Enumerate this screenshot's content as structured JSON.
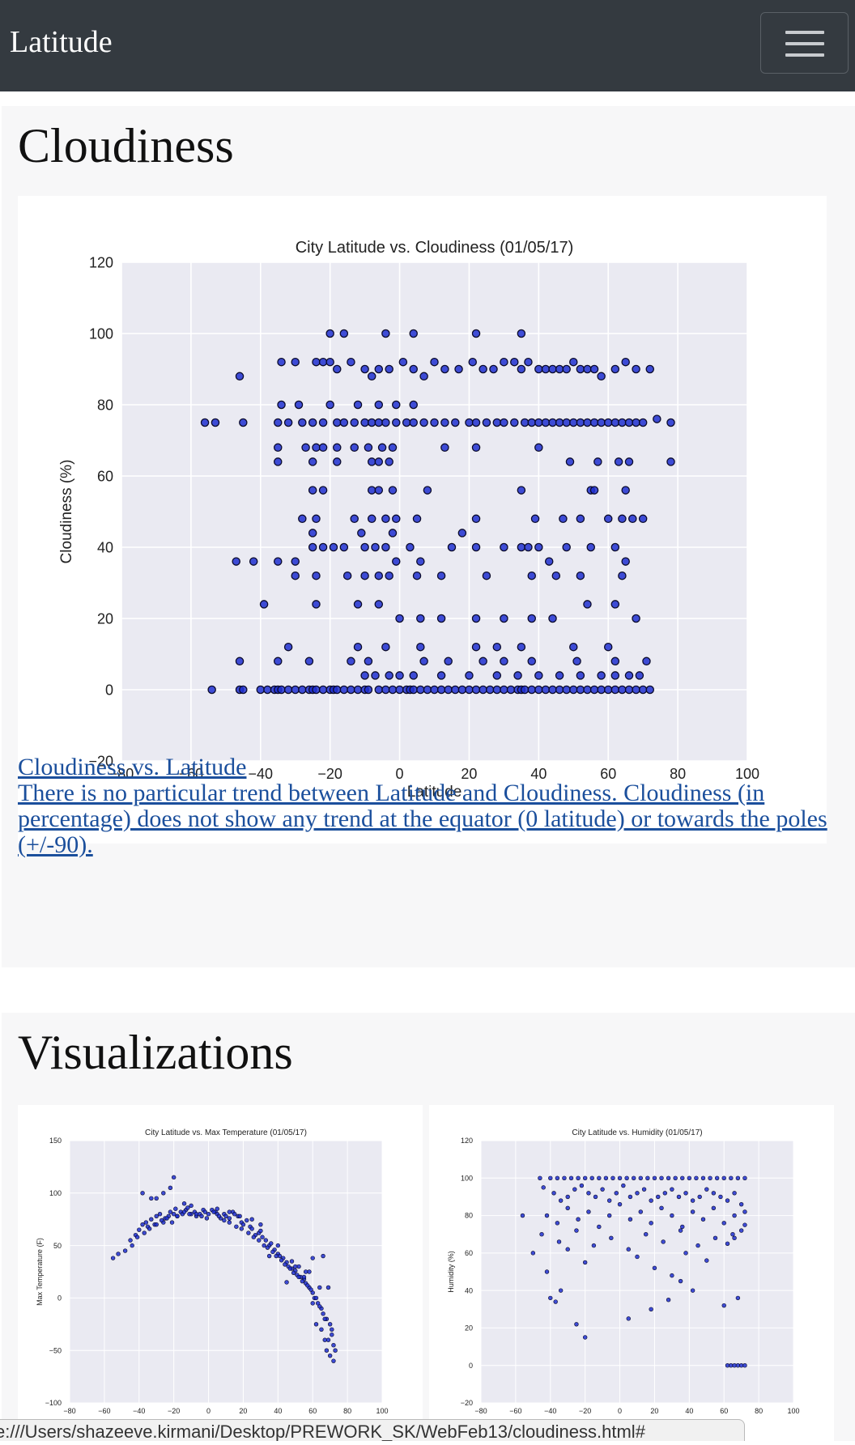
{
  "navbar": {
    "brand": "Latitude",
    "menu_icon": "hamburger-icon"
  },
  "cloudiness_section": {
    "title": "Cloudiness",
    "link_title": "Cloudiness vs. Latitude",
    "link_text": "There is no particular trend between Latitude and Cloudiness. Cloudiness (in percentage) does not show any trend at the equator (0 latitude) or towards the poles (+/-90)."
  },
  "visualizations_section": {
    "title": "Visualizations"
  },
  "status_bar": {
    "url": "e:///Users/shazeeve.kirmani/Desktop/PREWORK_SK/WebFeb13/cloudiness.html#"
  },
  "colors": {
    "navbar": "#343a40",
    "point_fill": "#1f2fd0",
    "plot_bg": "#eaeaf2",
    "link": "#1b4f9c"
  },
  "chart_data": [
    {
      "type": "scatter",
      "title": "City Latitude vs. Cloudiness (01/05/17)",
      "xlabel": "Latitude",
      "ylabel": "Cloudiness (%)",
      "xlim": [
        -80,
        100
      ],
      "ylim": [
        -20,
        120
      ],
      "xticks": [
        -80,
        -60,
        -40,
        -20,
        0,
        20,
        40,
        60,
        80,
        100
      ],
      "yticks": [
        -20,
        0,
        20,
        40,
        60,
        80,
        100,
        120
      ],
      "grid": true,
      "x": [
        -54,
        -46,
        -45,
        -40,
        -38,
        -36,
        -35,
        -34,
        -32,
        -30,
        -28,
        -26,
        -25,
        -24,
        -22,
        -20,
        -19,
        -18,
        -16,
        -14,
        -12,
        -10,
        -9,
        -6,
        -4,
        -2,
        0,
        2,
        3,
        4,
        6,
        8,
        10,
        12,
        14,
        16,
        18,
        20,
        22,
        24,
        26,
        28,
        30,
        32,
        34,
        35,
        36,
        38,
        40,
        42,
        44,
        46,
        48,
        50,
        52,
        54,
        56,
        58,
        60,
        62,
        64,
        66,
        68,
        70,
        72,
        -56,
        -53,
        -45,
        -35,
        -32,
        -28,
        -25,
        -22,
        -18,
        -16,
        -13,
        -10,
        -8,
        -6,
        -4,
        -1,
        2,
        4,
        7,
        10,
        13,
        16,
        20,
        22,
        25,
        28,
        30,
        33,
        36,
        38,
        40,
        42,
        44,
        46,
        48,
        50,
        52,
        54,
        56,
        58,
        60,
        62,
        64,
        66,
        68,
        70,
        74,
        78,
        -46,
        -34,
        -30,
        -24,
        -22,
        -20,
        -18,
        -14,
        -10,
        -8,
        -6,
        -3,
        1,
        4,
        7,
        10,
        13,
        17,
        21,
        24,
        27,
        30,
        33,
        35,
        37,
        40,
        42,
        44,
        46,
        48,
        50,
        52,
        54,
        56,
        58,
        62,
        65,
        68,
        72,
        -20,
        -16,
        -4,
        4,
        22,
        35,
        -34,
        -29,
        -20,
        -12,
        -6,
        -1,
        4,
        -35,
        -27,
        -24,
        -22,
        -18,
        -13,
        -9,
        -5,
        -2,
        -35,
        -25,
        -18,
        -8,
        -6,
        -3,
        13,
        22,
        40,
        49,
        57,
        63,
        66,
        78,
        -25,
        -22,
        -8,
        -6,
        -2,
        8,
        35,
        55,
        56,
        65,
        -28,
        -24,
        -13,
        -8,
        -4,
        -1,
        5,
        22,
        39,
        47,
        52,
        60,
        64,
        67,
        70,
        -47,
        -42,
        -35,
        -30,
        -25,
        -22,
        -19,
        -16,
        -10,
        -7,
        -4,
        -1,
        3,
        6,
        15,
        22,
        30,
        35,
        37,
        40,
        43,
        48,
        55,
        62,
        65,
        -30,
        -24,
        -15,
        -10,
        -6,
        -3,
        5,
        12,
        25,
        38,
        45,
        52,
        64,
        -39,
        -24,
        -12,
        -6,
        0,
        6,
        12,
        22,
        30,
        38,
        44,
        54,
        62,
        68,
        -32,
        -12,
        -4,
        6,
        22,
        28,
        35,
        50,
        60,
        -46,
        -35,
        -26,
        -14,
        -9,
        7,
        14,
        24,
        30,
        38,
        51,
        62,
        71,
        -25,
        -11,
        -2,
        18,
        -10,
        -7,
        -3,
        0,
        4,
        12,
        20,
        28,
        34,
        40,
        46,
        52,
        58,
        62,
        66,
        69
      ],
      "y": [
        0,
        0,
        0,
        0,
        0,
        0,
        0,
        0,
        0,
        0,
        0,
        0,
        0,
        0,
        0,
        0,
        0,
        0,
        0,
        0,
        0,
        0,
        0,
        0,
        0,
        0,
        0,
        0,
        0,
        0,
        0,
        0,
        0,
        0,
        0,
        0,
        0,
        0,
        0,
        0,
        0,
        0,
        0,
        0,
        0,
        0,
        0,
        0,
        0,
        0,
        0,
        0,
        0,
        0,
        0,
        0,
        0,
        0,
        0,
        0,
        0,
        0,
        0,
        0,
        0,
        75,
        75,
        75,
        75,
        75,
        75,
        75,
        75,
        75,
        75,
        75,
        75,
        75,
        75,
        75,
        75,
        75,
        75,
        75,
        75,
        75,
        75,
        75,
        75,
        75,
        75,
        75,
        75,
        75,
        75,
        75,
        75,
        75,
        75,
        75,
        75,
        75,
        75,
        75,
        75,
        75,
        75,
        75,
        75,
        75,
        75,
        76,
        75,
        88,
        92,
        92,
        92,
        92,
        92,
        90,
        92,
        90,
        88,
        90,
        90,
        92,
        90,
        88,
        92,
        90,
        90,
        92,
        90,
        90,
        92,
        92,
        90,
        92,
        90,
        90,
        90,
        90,
        90,
        92,
        90,
        90,
        90,
        88,
        90,
        92,
        90,
        90,
        100,
        100,
        100,
        100,
        100,
        100,
        80,
        80,
        80,
        80,
        80,
        80,
        80,
        68,
        68,
        68,
        68,
        68,
        68,
        68,
        68,
        68,
        64,
        64,
        64,
        64,
        64,
        64,
        68,
        68,
        68,
        64,
        64,
        64,
        64,
        64,
        56,
        56,
        56,
        56,
        56,
        56,
        56,
        56,
        56,
        56,
        48,
        48,
        48,
        48,
        48,
        48,
        48,
        48,
        48,
        48,
        48,
        48,
        48,
        48,
        48,
        36,
        36,
        36,
        36,
        40,
        40,
        40,
        40,
        40,
        40,
        40,
        36,
        40,
        36,
        40,
        40,
        40,
        40,
        40,
        40,
        36,
        40,
        40,
        40,
        36,
        32,
        32,
        32,
        32,
        32,
        32,
        32,
        32,
        32,
        32,
        32,
        32,
        32,
        24,
        24,
        24,
        24,
        20,
        20,
        20,
        20,
        20,
        20,
        20,
        24,
        24,
        20,
        12,
        12,
        12,
        12,
        12,
        12,
        12,
        12,
        12,
        8,
        8,
        8,
        8,
        8,
        8,
        8,
        8,
        8,
        8,
        8,
        8,
        8,
        44,
        44,
        44,
        44,
        4,
        4,
        4,
        4,
        4,
        4,
        4,
        4,
        4,
        4,
        4,
        4,
        4,
        4,
        4,
        4
      ]
    },
    {
      "type": "scatter",
      "title": "City Latitude vs. Max Temperature (01/05/17)",
      "xlabel": "",
      "ylabel": "Max Temperature (F)",
      "xlim": [
        -80,
        100
      ],
      "ylim": [
        -100,
        150
      ],
      "xticks": [
        -80,
        -60,
        -40,
        -20,
        0,
        20,
        40,
        60,
        80,
        100
      ],
      "yticks": [
        -100,
        -50,
        0,
        50,
        100,
        150
      ],
      "grid": true,
      "x": [
        -55,
        -52,
        -48,
        -45,
        -42,
        -40,
        -38,
        -36,
        -35,
        -33,
        -31,
        -30,
        -28,
        -26,
        -25,
        -23,
        -22,
        -20,
        -19,
        -18,
        -16,
        -15,
        -13,
        -12,
        -10,
        -8,
        -7,
        -5,
        -3,
        -2,
        0,
        2,
        4,
        5,
        7,
        9,
        10,
        12,
        14,
        15,
        17,
        19,
        20,
        22,
        24,
        25,
        27,
        29,
        30,
        31,
        33,
        35,
        36,
        38,
        40,
        41,
        43,
        45,
        46,
        48,
        50,
        51,
        53,
        55,
        56,
        58,
        60,
        61,
        63,
        65,
        66,
        68,
        70,
        71,
        72,
        -44,
        -41,
        -37,
        -34,
        -30,
        -27,
        -24,
        -21,
        -18,
        -14,
        -11,
        -7,
        -4,
        -1,
        3,
        6,
        9,
        12,
        16,
        19,
        23,
        26,
        29,
        32,
        34,
        37,
        39,
        42,
        44,
        47,
        49,
        52,
        54,
        57,
        59,
        62,
        64,
        67,
        69,
        -22,
        -30,
        -14,
        -10,
        35,
        45,
        55,
        60,
        62,
        65,
        67,
        68,
        70,
        72,
        48,
        52,
        58,
        64,
        -20,
        -26,
        -33,
        -38,
        5,
        12,
        18,
        25,
        30,
        40,
        50,
        56,
        60,
        66,
        69,
        71,
        73
      ],
      "y": [
        38,
        42,
        45,
        55,
        60,
        65,
        70,
        72,
        68,
        75,
        70,
        78,
        80,
        72,
        76,
        78,
        82,
        80,
        85,
        78,
        82,
        80,
        84,
        86,
        80,
        82,
        78,
        80,
        84,
        82,
        80,
        84,
        82,
        80,
        76,
        80,
        78,
        76,
        82,
        80,
        78,
        72,
        70,
        74,
        68,
        66,
        60,
        62,
        64,
        58,
        55,
        50,
        52,
        46,
        42,
        40,
        38,
        34,
        30,
        28,
        26,
        22,
        20,
        18,
        14,
        10,
        5,
        0,
        -5,
        -10,
        -15,
        -20,
        -25,
        -35,
        -45,
        50,
        58,
        62,
        66,
        70,
        74,
        76,
        72,
        78,
        82,
        80,
        80,
        78,
        76,
        82,
        78,
        74,
        72,
        68,
        66,
        62,
        58,
        55,
        50,
        48,
        44,
        40,
        36,
        32,
        28,
        24,
        20,
        16,
        12,
        8,
        0,
        -8,
        -20,
        -40,
        105,
        95,
        90,
        88,
        40,
        15,
        20,
        -5,
        -25,
        -30,
        -40,
        -50,
        -55,
        -60,
        35,
        30,
        25,
        10,
        115,
        100,
        95,
        100,
        85,
        82,
        78,
        75,
        70,
        50,
        30,
        25,
        38,
        40,
        10,
        -30,
        -50
      ]
    },
    {
      "type": "scatter",
      "title": "City Latitude vs. Humidity (01/05/17)",
      "xlabel": "",
      "ylabel": "Humidity (%)",
      "xlim": [
        -80,
        100
      ],
      "ylim": [
        -20,
        120
      ],
      "xticks": [
        -80,
        -60,
        -40,
        -20,
        0,
        20,
        40,
        60,
        80,
        100
      ],
      "yticks": [
        -20,
        0,
        20,
        40,
        60,
        80,
        100,
        120
      ],
      "grid": true,
      "x": [
        -46,
        -40,
        -36,
        -32,
        -28,
        -24,
        -20,
        -16,
        -12,
        -8,
        -4,
        0,
        4,
        8,
        12,
        16,
        20,
        24,
        28,
        32,
        36,
        40,
        44,
        48,
        52,
        56,
        60,
        64,
        68,
        72,
        -44,
        -38,
        -34,
        -30,
        -26,
        -22,
        -18,
        -14,
        -10,
        -6,
        -2,
        2,
        6,
        10,
        14,
        18,
        22,
        26,
        30,
        34,
        38,
        42,
        46,
        50,
        54,
        58,
        62,
        66,
        70,
        -42,
        -36,
        -30,
        -24,
        -18,
        -12,
        -6,
        0,
        6,
        12,
        18,
        24,
        30,
        36,
        42,
        48,
        54,
        60,
        66,
        72,
        -45,
        -35,
        -25,
        -15,
        -5,
        5,
        15,
        25,
        35,
        45,
        55,
        65,
        -56,
        -50,
        -42,
        -30,
        -20,
        10,
        20,
        30,
        38,
        50,
        62,
        66,
        70,
        72,
        -40,
        -37,
        -34,
        -25,
        -20,
        5,
        18,
        28,
        35,
        42,
        60,
        68,
        62,
        64,
        66,
        68,
        70,
        72
      ],
      "y": [
        100,
        100,
        100,
        100,
        100,
        100,
        100,
        100,
        100,
        100,
        100,
        100,
        100,
        100,
        100,
        100,
        100,
        100,
        100,
        100,
        100,
        100,
        100,
        100,
        100,
        100,
        100,
        100,
        100,
        100,
        95,
        92,
        88,
        90,
        94,
        96,
        92,
        90,
        94,
        88,
        92,
        96,
        90,
        92,
        94,
        88,
        90,
        92,
        94,
        90,
        92,
        88,
        90,
        94,
        92,
        90,
        88,
        92,
        86,
        80,
        76,
        84,
        78,
        82,
        74,
        80,
        86,
        78,
        82,
        76,
        84,
        80,
        74,
        82,
        78,
        84,
        76,
        80,
        82,
        70,
        66,
        72,
        64,
        68,
        62,
        70,
        66,
        72,
        64,
        68,
        70,
        80,
        60,
        50,
        62,
        55,
        58,
        52,
        48,
        60,
        56,
        65,
        68,
        72,
        75,
        36,
        34,
        40,
        22,
        15,
        25,
        30,
        35,
        45,
        40,
        32,
        36,
        0,
        0,
        0,
        0,
        0,
        0
      ]
    }
  ]
}
